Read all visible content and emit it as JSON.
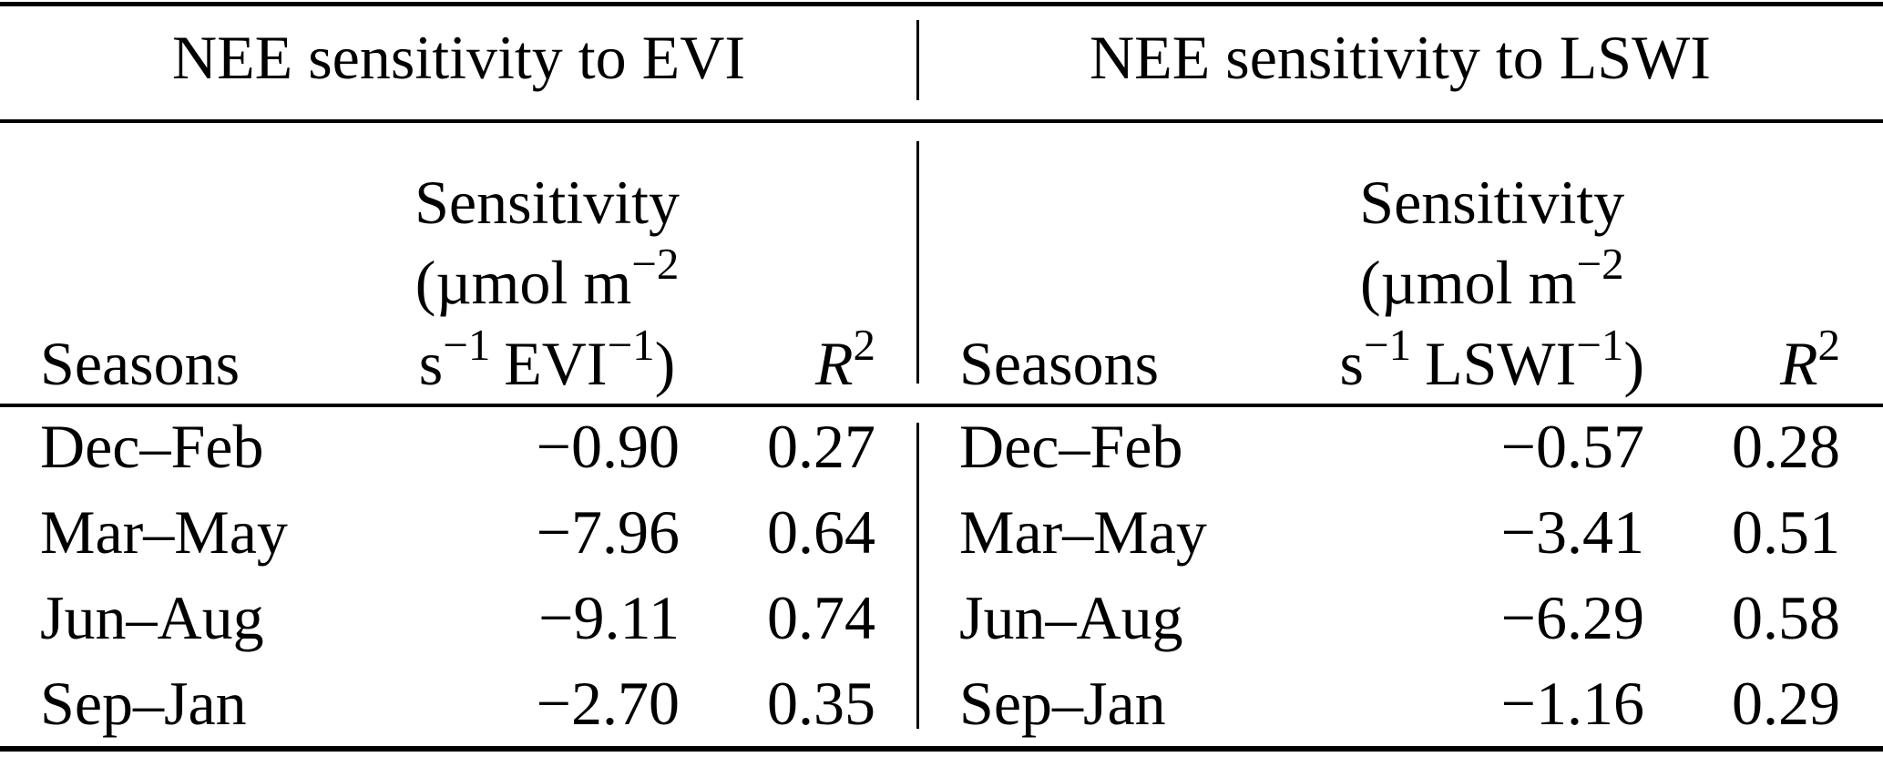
{
  "table": {
    "groups": [
      {
        "title": "NEE sensitivity to EVI",
        "header": {
          "seasons": "Seasons",
          "unit_line1": "Sensitivity",
          "unit_line2_base": "(µmol m",
          "unit_line2_sup": "−2",
          "unit_line3_base": "s",
          "unit_line3_base_sup": "−1",
          "unit_line3_var": "EVI",
          "unit_line3_var_sup": "−1",
          "unit_line3_close": ")",
          "r2_base": "R",
          "r2_sup": "2"
        },
        "rows": [
          {
            "season": "Dec–Feb",
            "sensitivity": "−0.90",
            "r2": "0.27"
          },
          {
            "season": "Mar–May",
            "sensitivity": "−7.96",
            "r2": "0.64"
          },
          {
            "season": "Jun–Aug",
            "sensitivity": "−9.11",
            "r2": "0.74"
          },
          {
            "season": "Sep–Jan",
            "sensitivity": "−2.70",
            "r2": "0.35"
          }
        ]
      },
      {
        "title": "NEE sensitivity to LSWI",
        "header": {
          "seasons": "Seasons",
          "unit_line1": "Sensitivity",
          "unit_line2_base": "(µmol m",
          "unit_line2_sup": "−2",
          "unit_line3_base": "s",
          "unit_line3_base_sup": "−1",
          "unit_line3_var": "LSWI",
          "unit_line3_var_sup": "−1",
          "unit_line3_close": ")",
          "r2_base": "R",
          "r2_sup": "2"
        },
        "rows": [
          {
            "season": "Dec–Feb",
            "sensitivity": "−0.57",
            "r2": "0.28"
          },
          {
            "season": "Mar–May",
            "sensitivity": "−3.41",
            "r2": "0.51"
          },
          {
            "season": "Jun–Aug",
            "sensitivity": "−6.29",
            "r2": "0.58"
          },
          {
            "season": "Sep–Jan",
            "sensitivity": "−1.16",
            "r2": "0.29"
          }
        ]
      }
    ]
  }
}
